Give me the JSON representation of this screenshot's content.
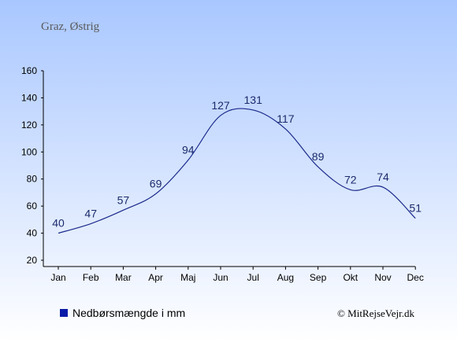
{
  "colors": {
    "series": "#1b2a8c",
    "legend_marker": "#0a1aa8",
    "bg_top": "#a9c7ff",
    "bg_bottom": "#ffffff"
  },
  "chart_data": {
    "type": "line",
    "title": "Graz, Østrig",
    "categories": [
      "Jan",
      "Feb",
      "Mar",
      "Apr",
      "Maj",
      "Jun",
      "Jul",
      "Aug",
      "Sep",
      "Okt",
      "Nov",
      "Dec"
    ],
    "series": [
      {
        "name": "Nedbørsmængde i mm",
        "values": [
          40,
          47,
          57,
          69,
          94,
          127,
          131,
          117,
          89,
          72,
          74,
          51
        ]
      }
    ],
    "ylim": [
      20,
      160
    ],
    "yticks": [
      20,
      40,
      60,
      80,
      100,
      120,
      140,
      160
    ],
    "grid": false,
    "legend_position": "bottom-left",
    "credit": "© MitRejseVejr.dk"
  }
}
